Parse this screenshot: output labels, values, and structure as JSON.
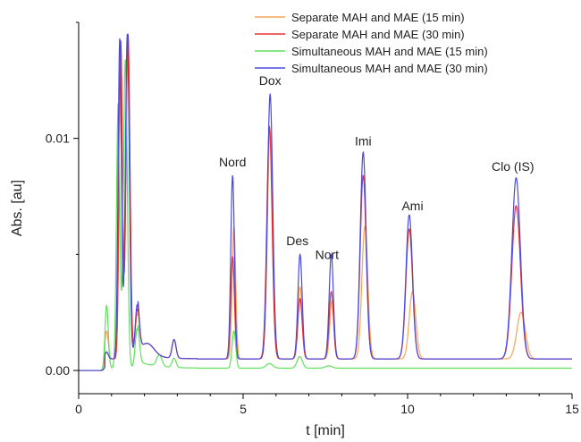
{
  "chart_data": {
    "type": "line",
    "title": "",
    "xlabel": "t [min]",
    "ylabel": "Abs. [au]",
    "xlim": [
      0,
      15
    ],
    "ylim": [
      -0.001,
      0.015
    ],
    "x_ticks": [
      0,
      5,
      10,
      15
    ],
    "x_tick_labels": [
      "0",
      "5",
      "10",
      "15"
    ],
    "y_ticks": [
      0.0,
      0.01
    ],
    "y_tick_labels": [
      "0.00",
      "0.01"
    ],
    "grid": false,
    "legend_position": "top-right",
    "series": [
      {
        "name": "Separate MAH and MAE (15 min)",
        "color": "#f5a55a",
        "baseline": 0.0005,
        "peaks": [
          {
            "t": 0.85,
            "h": 0.0012,
            "w": 0.05
          },
          {
            "t": 1.28,
            "h": 0.0135,
            "w": 0.05
          },
          {
            "t": 1.5,
            "h": 0.0138,
            "w": 0.06
          },
          {
            "t": 1.78,
            "h": 0.0018,
            "w": 0.06
          },
          {
            "t": 2.1,
            "h": 0.0005,
            "w": 0.2
          },
          {
            "t": 2.9,
            "h": 0.0008,
            "w": 0.06
          },
          {
            "t": 4.72,
            "h": 0.0057,
            "w": 0.055
          },
          {
            "t": 5.82,
            "h": 0.0098,
            "w": 0.08
          },
          {
            "t": 6.73,
            "h": 0.0031,
            "w": 0.065
          },
          {
            "t": 7.7,
            "h": 0.0025,
            "w": 0.065
          },
          {
            "t": 8.7,
            "h": 0.0057,
            "w": 0.09
          },
          {
            "t": 10.15,
            "h": 0.0029,
            "w": 0.1
          },
          {
            "t": 13.45,
            "h": 0.002,
            "w": 0.13
          }
        ]
      },
      {
        "name": "Separate MAH and MAE (30 min)",
        "color": "#e8322e",
        "baseline": 0.0005,
        "peaks": [
          {
            "t": 0.85,
            "h": 0.0003,
            "w": 0.05
          },
          {
            "t": 1.28,
            "h": 0.0137,
            "w": 0.05
          },
          {
            "t": 1.5,
            "h": 0.014,
            "w": 0.06
          },
          {
            "t": 1.78,
            "h": 0.002,
            "w": 0.06
          },
          {
            "t": 2.1,
            "h": 0.0005,
            "w": 0.2
          },
          {
            "t": 2.9,
            "h": 0.0008,
            "w": 0.06
          },
          {
            "t": 4.68,
            "h": 0.0044,
            "w": 0.055
          },
          {
            "t": 5.8,
            "h": 0.01,
            "w": 0.08
          },
          {
            "t": 6.73,
            "h": 0.0026,
            "w": 0.065
          },
          {
            "t": 7.68,
            "h": 0.0029,
            "w": 0.065
          },
          {
            "t": 8.65,
            "h": 0.0079,
            "w": 0.09
          },
          {
            "t": 10.05,
            "h": 0.0056,
            "w": 0.1
          },
          {
            "t": 13.3,
            "h": 0.0066,
            "w": 0.13
          }
        ]
      },
      {
        "name": "Simultaneous MAH and MAE (15 min)",
        "color": "#5fe05a",
        "baseline": 0.0001,
        "peaks": [
          {
            "t": 0.85,
            "h": 0.0027,
            "w": 0.05
          },
          {
            "t": 1.2,
            "h": 0.0114,
            "w": 0.05
          },
          {
            "t": 1.42,
            "h": 0.0133,
            "w": 0.06
          },
          {
            "t": 1.78,
            "h": 0.0017,
            "w": 0.06
          },
          {
            "t": 2.45,
            "h": 0.0005,
            "w": 0.08
          },
          {
            "t": 2.9,
            "h": 0.0004,
            "w": 0.06
          },
          {
            "t": 4.72,
            "h": 0.0016,
            "w": 0.055
          },
          {
            "t": 5.8,
            "h": 0.0002,
            "w": 0.1
          },
          {
            "t": 6.72,
            "h": 0.0005,
            "w": 0.08
          },
          {
            "t": 7.6,
            "h": 0.0001,
            "w": 0.1
          }
        ]
      },
      {
        "name": "Simultaneous MAH and MAE (30 min)",
        "color": "#4a4ae0",
        "baseline": 0.0005,
        "peaks": [
          {
            "t": 0.85,
            "h": 0.0003,
            "w": 0.05
          },
          {
            "t": 1.25,
            "h": 0.0138,
            "w": 0.05
          },
          {
            "t": 1.48,
            "h": 0.014,
            "w": 0.06
          },
          {
            "t": 1.78,
            "h": 0.0022,
            "w": 0.06
          },
          {
            "t": 2.1,
            "h": 0.0005,
            "w": 0.2
          },
          {
            "t": 2.9,
            "h": 0.0008,
            "w": 0.06
          },
          {
            "t": 4.68,
            "h": 0.0079,
            "w": 0.055
          },
          {
            "t": 5.82,
            "h": 0.0114,
            "w": 0.08
          },
          {
            "t": 6.73,
            "h": 0.0045,
            "w": 0.065
          },
          {
            "t": 7.68,
            "h": 0.0045,
            "w": 0.065
          },
          {
            "t": 8.65,
            "h": 0.0089,
            "w": 0.09
          },
          {
            "t": 10.05,
            "h": 0.0062,
            "w": 0.1
          },
          {
            "t": 13.3,
            "h": 0.0078,
            "w": 0.13
          }
        ]
      }
    ],
    "peak_labels": [
      {
        "text": "Nord",
        "t": 4.68,
        "y": 0.0088
      },
      {
        "text": "Dox",
        "t": 5.82,
        "y": 0.0123
      },
      {
        "text": "Des",
        "t": 6.65,
        "y": 0.0054
      },
      {
        "text": "Nort",
        "t": 7.55,
        "y": 0.0048
      },
      {
        "text": "Imi",
        "t": 8.65,
        "y": 0.0097
      },
      {
        "text": "Ami",
        "t": 10.15,
        "y": 0.0069
      },
      {
        "text": "Clo (IS)",
        "t": 13.2,
        "y": 0.0086
      }
    ]
  }
}
